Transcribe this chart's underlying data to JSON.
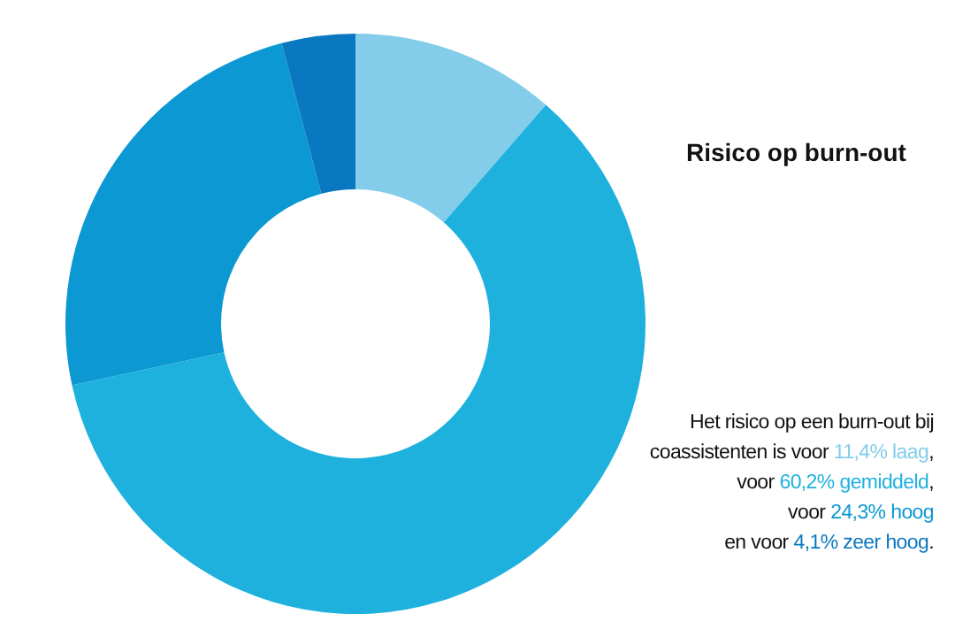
{
  "chart_data": {
    "type": "donut",
    "title": "Risico op burn-out",
    "categories": [
      null,
      null,
      null,
      null
    ],
    "values": [
      11.4,
      60.2,
      24.3,
      4.1
    ],
    "colors": [
      "#83cdea",
      "#1fb1de",
      "#0c98d2",
      "#0a78c0"
    ],
    "annotations": [
      "Het risico op een burn-out bij coassistenten is voor ",
      "11,4% laag",
      ",\nvoor ",
      "60,2% gemiddeld",
      ",\nvoor ",
      "24,3% hoog",
      "\nen voor ",
      "4,1% zeer hoog",
      "."
    ],
    "legend": false
  }
}
